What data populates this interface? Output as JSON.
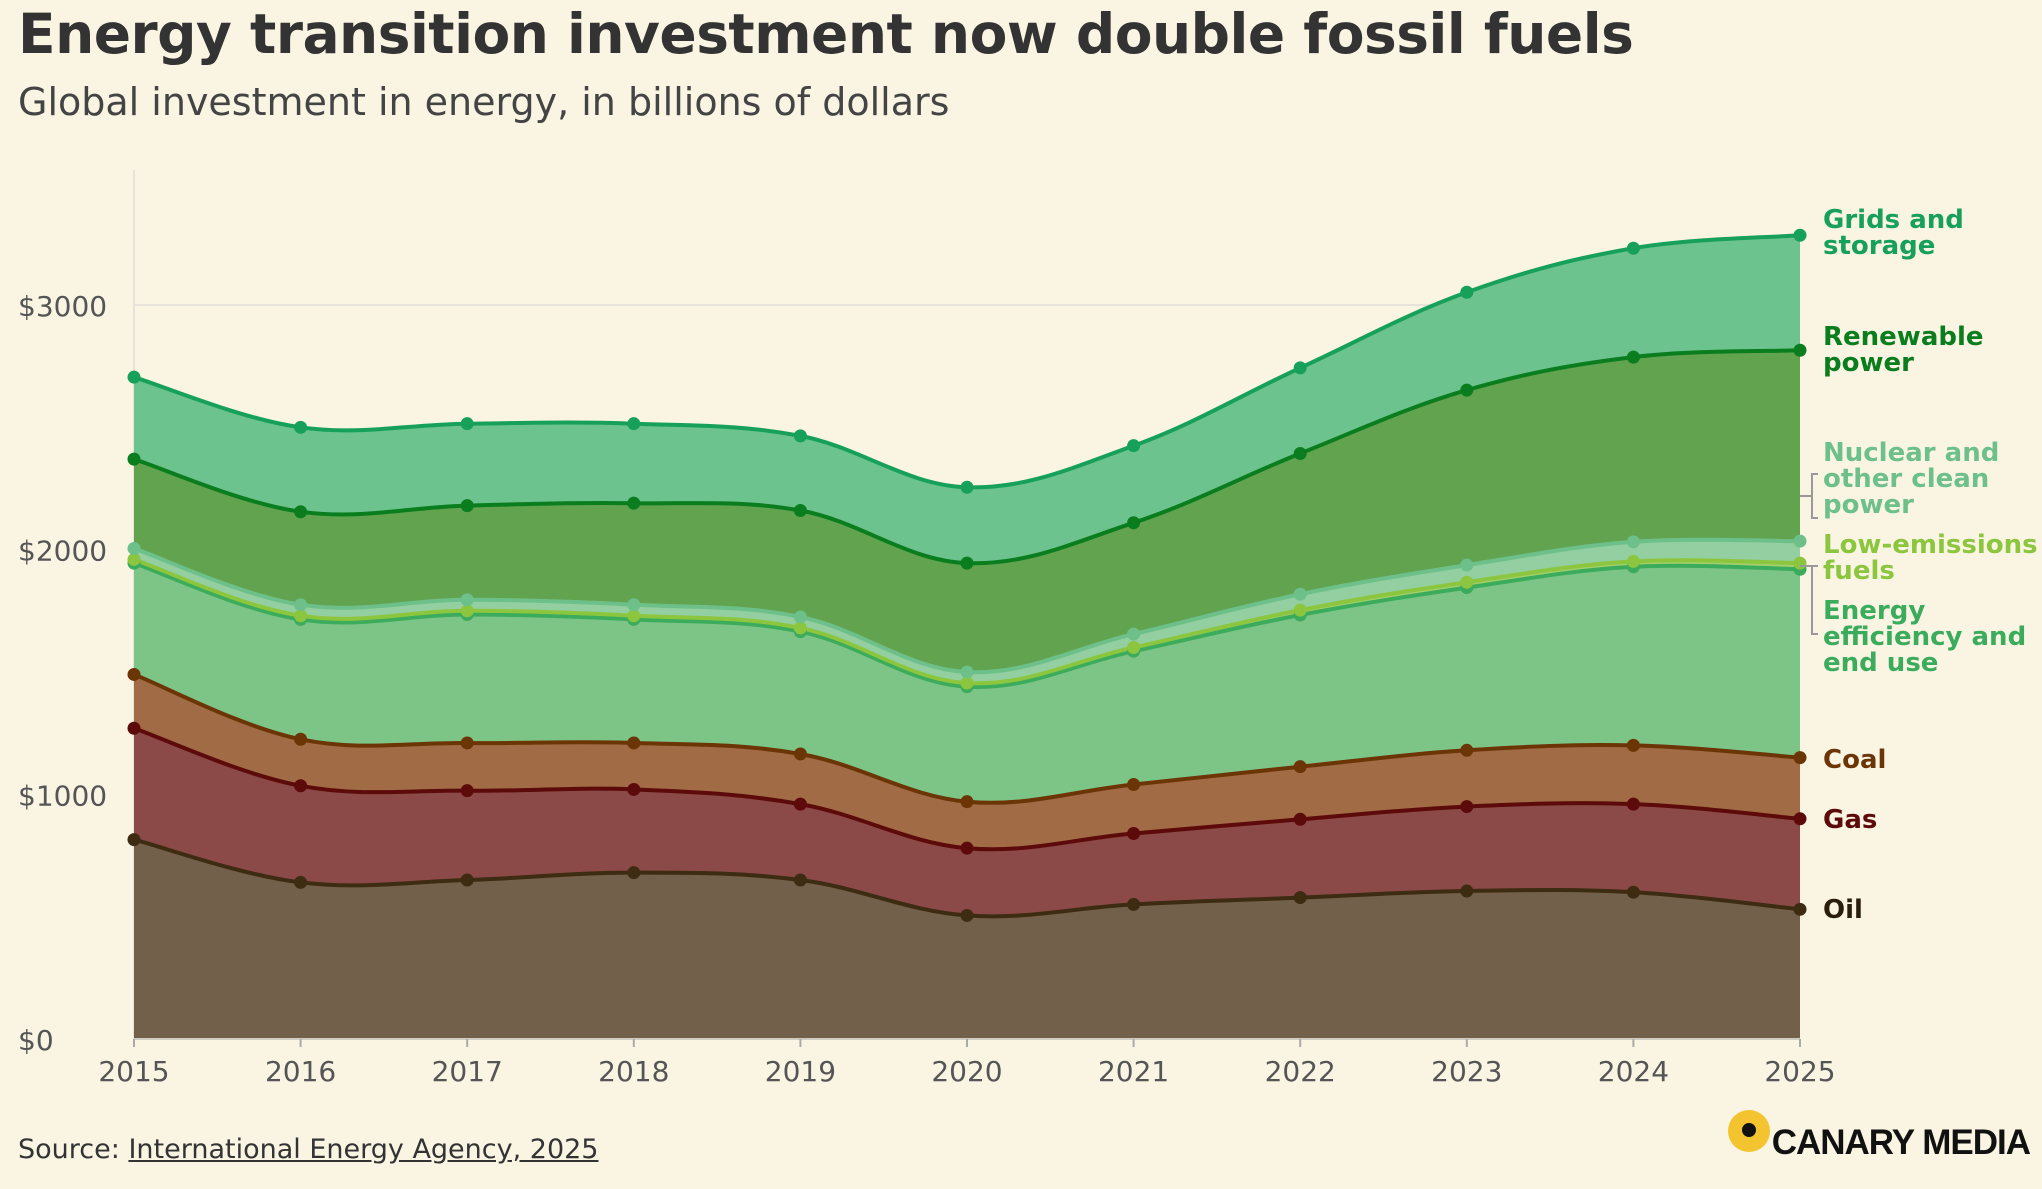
{
  "header": {
    "title": "Energy transition investment now double fossil fuels",
    "subtitle": "Global investment in energy, in billions of dollars"
  },
  "footer": {
    "source_prefix": "Source:",
    "source_link": "International Energy Agency, 2025",
    "brand": "CANARY MEDIA"
  },
  "chart_data": {
    "type": "area",
    "stacked": true,
    "x": [
      2015,
      2016,
      2017,
      2018,
      2019,
      2020,
      2021,
      2022,
      2023,
      2024,
      2025
    ],
    "ylim": [
      0,
      3500
    ],
    "yticks": [
      0,
      1000,
      2000,
      3000
    ],
    "ytick_labels": [
      "$0",
      "$1000",
      "$2000",
      "$3000"
    ],
    "grid": "horizontal",
    "legend": "labels at right end of each series",
    "series": [
      {
        "name": "Oil",
        "color": "#3d2b12",
        "fill": "#73604a",
        "values": [
          815,
          640,
          650,
          680,
          650,
          505,
          550,
          578,
          605,
          600,
          530
        ]
      },
      {
        "name": "Gas",
        "color": "#5c0a0a",
        "fill": "#8b4a48",
        "values": [
          455,
          395,
          365,
          340,
          310,
          275,
          290,
          320,
          345,
          360,
          370
        ]
      },
      {
        "name": "Coal",
        "color": "#6b3505",
        "fill": "#a06b45",
        "values": [
          220,
          190,
          195,
          190,
          205,
          190,
          200,
          215,
          230,
          240,
          250
        ]
      },
      {
        "name": "Energy efficiency and end use",
        "color": "#3bab5c",
        "fill": "#7dc487",
        "values": [
          455,
          490,
          525,
          505,
          500,
          470,
          545,
          620,
          665,
          730,
          770
        ]
      },
      {
        "name": "Low-emissions fuels",
        "color": "#8cc63f",
        "fill": "#a3cf6a",
        "values": [
          15,
          15,
          15,
          15,
          15,
          15,
          15,
          20,
          22,
          22,
          25
        ]
      },
      {
        "name": "Nuclear and other clean power",
        "color": "#6dc08a",
        "fill": "#93cfa0",
        "values": [
          45,
          45,
          45,
          45,
          45,
          45,
          55,
          65,
          70,
          80,
          90
        ]
      },
      {
        "name": "Renewable power",
        "color": "#0a7d1e",
        "fill": "#62a34f",
        "values": [
          365,
          380,
          385,
          415,
          435,
          445,
          455,
          575,
          715,
          755,
          780
        ]
      },
      {
        "name": "Grids and storage",
        "color": "#16a05a",
        "fill": "#6cc38e",
        "values": [
          335,
          345,
          335,
          325,
          305,
          310,
          315,
          350,
          400,
          445,
          470
        ]
      }
    ]
  }
}
